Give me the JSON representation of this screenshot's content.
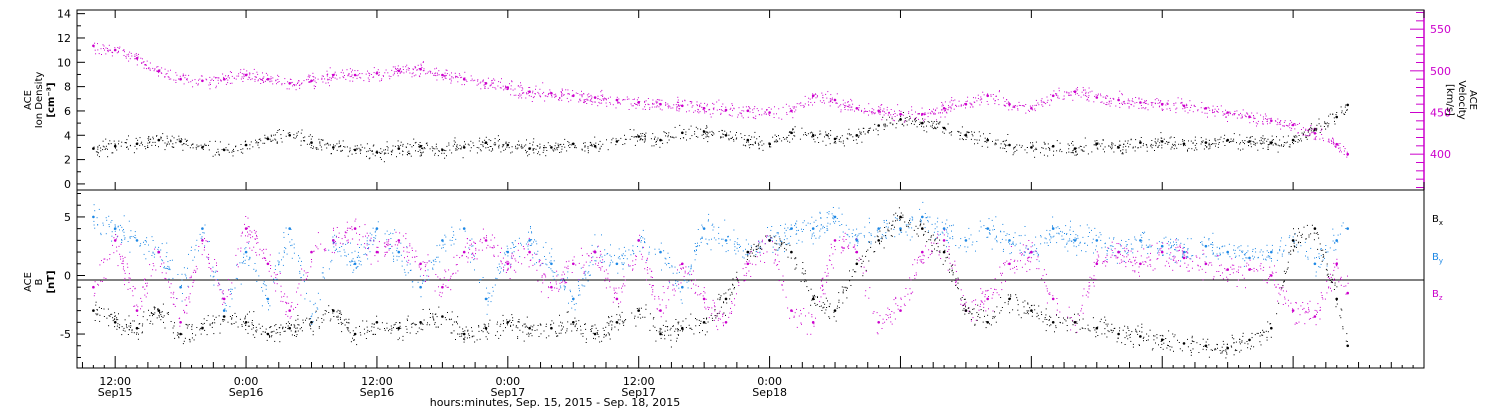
{
  "chart_data": [
    {
      "type": "scatter",
      "panel": "top",
      "ylabel_left": [
        "ACE",
        "Ion Density",
        "[cm⁻³]"
      ],
      "ylabel_right": [
        "ACE",
        "Velocity",
        "[km/s]"
      ],
      "ylim_left": [
        -0.5,
        14.3
      ],
      "yticks_left": [
        0,
        2,
        4,
        6,
        8,
        10,
        12,
        14
      ],
      "ylim_right": [
        357,
        573
      ],
      "yticks_right": [
        400,
        450,
        500,
        550
      ],
      "colors": {
        "density": "#000000",
        "velocity": "#cc00cc"
      },
      "series": [
        {
          "name": "Ion Density",
          "axis": "left",
          "color": "#000000",
          "x": [
            -2,
            0,
            2,
            4,
            6,
            8,
            10,
            12,
            14,
            16,
            18,
            20,
            22,
            24,
            26,
            28,
            30,
            32,
            34,
            36,
            38,
            40,
            42,
            44,
            46,
            48,
            50,
            52,
            54,
            56,
            58,
            60,
            62,
            64,
            66,
            68,
            70,
            72,
            74,
            76,
            78,
            80,
            82,
            84,
            86,
            88,
            90,
            92,
            94,
            96,
            98,
            100,
            102,
            104,
            106,
            108,
            110,
            112,
            113
          ],
          "values": [
            2.9,
            3.1,
            3.3,
            3.6,
            3.5,
            3.0,
            2.8,
            3.2,
            3.7,
            4.0,
            3.4,
            3.0,
            2.8,
            2.6,
            2.9,
            3.1,
            2.8,
            3.0,
            3.4,
            3.2,
            2.9,
            3.0,
            3.3,
            3.1,
            3.5,
            3.9,
            3.6,
            4.2,
            4.3,
            4.0,
            3.6,
            3.3,
            4.2,
            4.0,
            3.7,
            4.0,
            4.8,
            5.3,
            5.0,
            4.6,
            4.0,
            3.6,
            3.2,
            3.0,
            3.1,
            2.9,
            3.3,
            3.0,
            3.4,
            3.5,
            3.3,
            3.4,
            3.6,
            3.5,
            3.4,
            3.6,
            4.5,
            5.5,
            6.5
          ]
        },
        {
          "name": "Velocity",
          "axis": "right",
          "color": "#cc00cc",
          "x": [
            -2,
            0,
            2,
            4,
            6,
            8,
            10,
            12,
            14,
            16,
            18,
            20,
            22,
            24,
            26,
            28,
            30,
            32,
            34,
            36,
            38,
            40,
            42,
            44,
            46,
            48,
            50,
            52,
            54,
            56,
            58,
            60,
            62,
            64,
            66,
            68,
            70,
            72,
            74,
            76,
            78,
            80,
            82,
            84,
            86,
            88,
            90,
            92,
            94,
            96,
            98,
            100,
            102,
            104,
            106,
            108,
            110,
            112,
            113
          ],
          "values": [
            530,
            525,
            515,
            500,
            490,
            488,
            490,
            495,
            490,
            485,
            488,
            495,
            495,
            497,
            500,
            502,
            495,
            490,
            485,
            480,
            475,
            473,
            470,
            468,
            465,
            462,
            460,
            458,
            455,
            453,
            452,
            450,
            452,
            470,
            465,
            455,
            452,
            448,
            448,
            455,
            460,
            470,
            460,
            455,
            470,
            475,
            468,
            465,
            462,
            460,
            458,
            455,
            450,
            445,
            440,
            435,
            425,
            412,
            400
          ]
        }
      ]
    },
    {
      "type": "scatter",
      "panel": "bottom",
      "ylabel_left": [
        "ACE",
        "B",
        "[nT]"
      ],
      "ylim": [
        -7.9,
        7.3
      ],
      "yticks": [
        -5,
        0,
        5
      ],
      "legend": {
        "placement": "right",
        "entries": [
          {
            "base": "B",
            "sub": "x",
            "color": "#000000"
          },
          {
            "base": "B",
            "sub": "y",
            "color": "#1e88e5"
          },
          {
            "base": "B",
            "sub": "z",
            "color": "#cc00cc"
          }
        ]
      },
      "series": [
        {
          "name": "Bx",
          "color": "#000000",
          "x": [
            -2,
            0,
            2,
            4,
            6,
            8,
            10,
            12,
            14,
            16,
            18,
            20,
            22,
            24,
            26,
            28,
            30,
            32,
            34,
            36,
            38,
            40,
            42,
            44,
            46,
            48,
            50,
            52,
            54,
            56,
            58,
            60,
            62,
            64,
            66,
            68,
            70,
            72,
            74,
            76,
            78,
            80,
            82,
            84,
            86,
            88,
            90,
            92,
            94,
            96,
            98,
            100,
            102,
            104,
            106,
            108,
            110,
            112,
            113
          ],
          "values": [
            -3,
            -4,
            -4.5,
            -3,
            -5,
            -4.5,
            -3.5,
            -4,
            -5,
            -4.5,
            -4,
            -3,
            -5,
            -4,
            -4.5,
            -4,
            -3.5,
            -5,
            -4.5,
            -4,
            -4.5,
            -4.5,
            -4,
            -5,
            -4,
            -3,
            -5,
            -4.5,
            -4,
            -2,
            2,
            3,
            2,
            -2,
            -3,
            1,
            3,
            5,
            4,
            2,
            -3,
            -4,
            -2,
            -3,
            -4,
            -4,
            -4.5,
            -5,
            -5.2,
            -5.5,
            -5.8,
            -6,
            -6.2,
            -5.5,
            -4.5,
            3,
            4,
            -2,
            -6
          ]
        },
        {
          "name": "By",
          "color": "#1e88e5",
          "x": [
            -2,
            0,
            2,
            4,
            6,
            8,
            10,
            12,
            14,
            16,
            18,
            20,
            22,
            24,
            26,
            28,
            30,
            32,
            34,
            36,
            38,
            40,
            42,
            44,
            46,
            48,
            50,
            52,
            54,
            56,
            58,
            60,
            62,
            64,
            66,
            68,
            70,
            72,
            74,
            76,
            78,
            80,
            82,
            84,
            86,
            88,
            90,
            92,
            94,
            96,
            98,
            100,
            102,
            104,
            106,
            108,
            110,
            112,
            113
          ],
          "values": [
            5,
            4,
            3,
            2,
            -1,
            4,
            -3,
            2,
            -2,
            4,
            -4,
            3,
            1,
            4,
            2,
            -1,
            3,
            4,
            -2,
            2,
            3,
            1,
            -2,
            2,
            1,
            3,
            2,
            -1,
            4,
            3,
            2,
            3,
            4,
            4,
            5,
            3,
            4,
            4,
            5,
            4,
            3,
            4,
            3,
            2,
            4,
            3,
            3,
            2,
            3,
            2.5,
            2,
            2.5,
            2,
            1.5,
            2,
            3,
            1,
            3,
            4
          ]
        },
        {
          "name": "Bz",
          "color": "#cc00cc",
          "x": [
            -2,
            0,
            2,
            4,
            6,
            8,
            10,
            12,
            14,
            16,
            18,
            20,
            22,
            24,
            26,
            28,
            30,
            32,
            34,
            36,
            38,
            40,
            42,
            44,
            46,
            48,
            50,
            52,
            54,
            56,
            58,
            60,
            62,
            64,
            66,
            68,
            70,
            72,
            74,
            76,
            78,
            80,
            82,
            84,
            86,
            88,
            90,
            92,
            94,
            96,
            98,
            100,
            102,
            104,
            106,
            108,
            110,
            112,
            113
          ],
          "values": [
            -1,
            3,
            -3,
            2,
            -4,
            3,
            -2,
            4,
            1,
            -3,
            2,
            3,
            4,
            2,
            3,
            1,
            -1,
            2,
            3,
            1,
            2,
            -1,
            1,
            2,
            -2,
            3,
            -3,
            1,
            -2,
            -4,
            1,
            3,
            -3,
            -4,
            3,
            2,
            -4,
            -3,
            2,
            3,
            -3,
            -2,
            1,
            2,
            -2,
            -4,
            1,
            2,
            1,
            2,
            1.5,
            1,
            0.5,
            0.5,
            0,
            -3,
            -3.5,
            1,
            -1.5
          ]
        }
      ]
    }
  ],
  "x_axis": {
    "xlim": [
      -3.5,
      120
    ],
    "ticks": [
      {
        "x": 0,
        "time": "12:00",
        "date": "Sep15"
      },
      {
        "x": 12,
        "time": "0:00",
        "date": "Sep16"
      },
      {
        "x": 24,
        "time": "12:00",
        "date": "Sep16"
      },
      {
        "x": 36,
        "time": "0:00",
        "date": "Sep17"
      },
      {
        "x": 48,
        "time": "12:00",
        "date": "Sep17"
      },
      {
        "x": 60,
        "time": "0:00",
        "date": "Sep18"
      }
    ],
    "xlabel": "hours:minutes, Sep. 15, 2015 - Sep. 18, 2015"
  }
}
